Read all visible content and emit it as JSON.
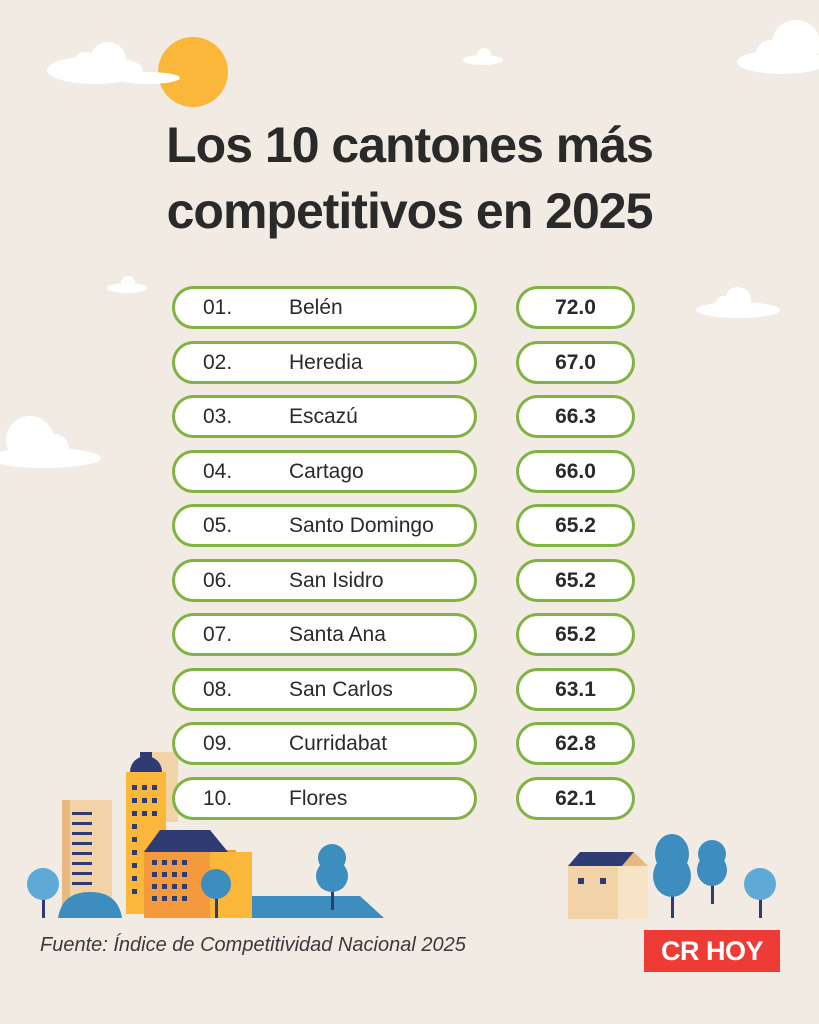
{
  "title": {
    "line1": "Los 10 cantones más",
    "line2": "competitivos en 2025"
  },
  "ranking": [
    {
      "rank": "01.",
      "name": "Belén",
      "value": "72.0"
    },
    {
      "rank": "02.",
      "name": "Heredia",
      "value": "67.0"
    },
    {
      "rank": "03.",
      "name": "Escazú",
      "value": "66.3"
    },
    {
      "rank": "04.",
      "name": "Cartago",
      "value": "66.0"
    },
    {
      "rank": "05.",
      "name": "Santo Domingo",
      "value": "65.2"
    },
    {
      "rank": "06.",
      "name": "San Isidro",
      "value": "65.2"
    },
    {
      "rank": "07.",
      "name": "Santa Ana",
      "value": "65.2"
    },
    {
      "rank": "08.",
      "name": "San Carlos",
      "value": "63.1"
    },
    {
      "rank": "09.",
      "name": "Curridabat",
      "value": "62.8"
    },
    {
      "rank": "10.",
      "name": "Flores",
      "value": "62.1"
    }
  ],
  "source": "Fuente: Índice de Competitividad Nacional 2025",
  "logo": "CR HOY",
  "colors": {
    "background": "#f2ebe3",
    "pill_border": "#80b341",
    "logo_red": "#ee3b36",
    "sun": "#fbb73a",
    "tree_blue": "#3d8dbf"
  }
}
